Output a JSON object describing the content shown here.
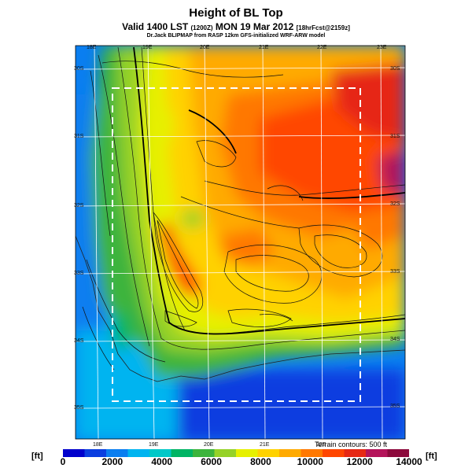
{
  "title": "Height of BL Top",
  "subtitle": {
    "prefix": "Valid 1400 LST",
    "code": "(1200Z)",
    "date": "MON 19 Mar 2012",
    "run": "[18hrFcst@2159z]"
  },
  "credit": "Dr.Jack BLIPMAP from RASP 12km GFS-initialized WRF-ARW model",
  "top_lon_labels": [
    "18E",
    "19E",
    "20E",
    "21E",
    "22E",
    "23E"
  ],
  "bottom_lon_labels": [
    "18E",
    "19E",
    "20E",
    "21E",
    "22E"
  ],
  "left_lat_labels": [
    "30S",
    "31S",
    "32S",
    "33S",
    "34S",
    "35S"
  ],
  "right_lat_labels": [
    "30S",
    "31S",
    "32S",
    "33S",
    "34S",
    "35S"
  ],
  "contour_note": "Terrain contours: 500 ft",
  "unit_label": "[ft]",
  "colorbar": {
    "labels": [
      "0",
      "2000",
      "4000",
      "6000",
      "8000",
      "10000",
      "12000",
      "14000"
    ],
    "colors": [
      "#0000cc",
      "#0a3ee0",
      "#0a7ef0",
      "#00b4f0",
      "#00c8c8",
      "#00b464",
      "#3cb43c",
      "#96d228",
      "#e6f000",
      "#ffd200",
      "#ffaa00",
      "#ff7800",
      "#ff4600",
      "#e62814",
      "#b4145a",
      "#8c0a3c"
    ]
  },
  "colors": {
    "ocean_deep": "#0a3ee0",
    "ocean_mid": "#0a7ef0",
    "ocean_light": "#00b4f0",
    "boundary_box": "#ffffff"
  }
}
